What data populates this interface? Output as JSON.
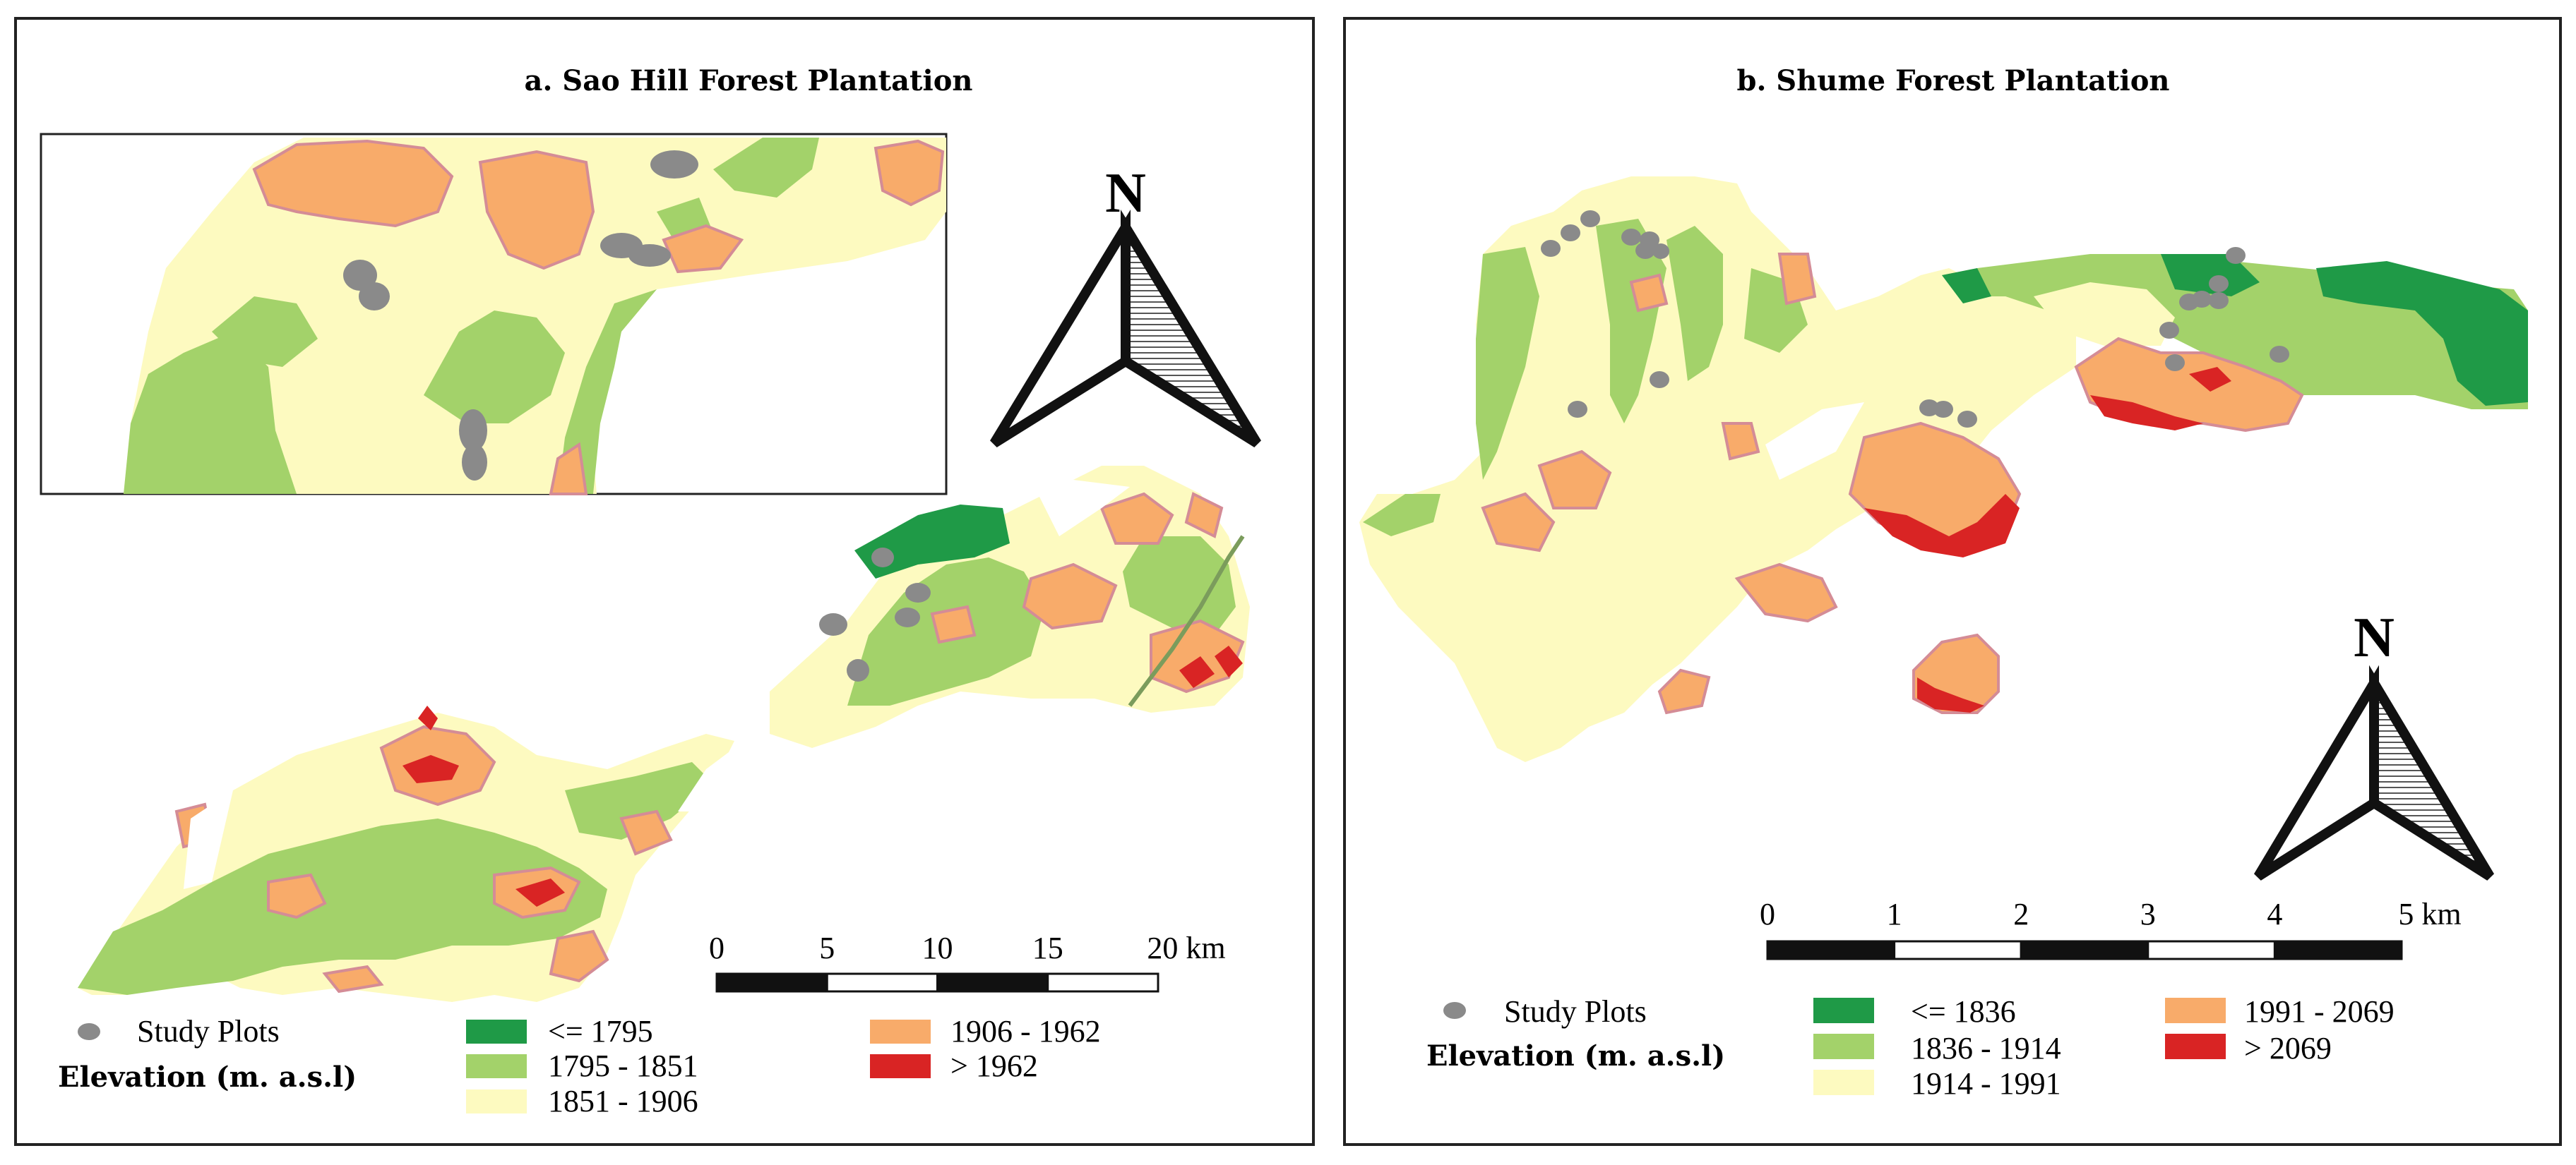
{
  "colors": {
    "c1": "#1f9a47",
    "c2": "#a3d26a",
    "c3": "#fdfac0",
    "c4": "#f8ab6a",
    "c5": "#d92424",
    "contour": "#d48c96",
    "plot": "#8a8a8a",
    "frame": "#222222"
  },
  "panel_a": {
    "title": "a. Sao Hill Forest Plantation",
    "north_label": "N",
    "scale_ticks": [
      "0",
      "5",
      "10",
      "15"
    ],
    "scale_end": "20 km",
    "legend": {
      "study_plots": "Study Plots",
      "elevation_label": "Elevation (m. a.s.l)",
      "classes": [
        "<= 1795",
        "1795 - 1851",
        "1851 - 1906",
        "1906 - 1962",
        "> 1962"
      ]
    }
  },
  "panel_b": {
    "title": "b. Shume Forest Plantation",
    "north_label": "N",
    "scale_ticks": [
      "0",
      "1",
      "2",
      "3",
      "4"
    ],
    "scale_end": "5 km",
    "legend": {
      "study_plots": "Study Plots",
      "elevation_label": "Elevation (m. a.s.l)",
      "classes": [
        "<= 1836",
        "1836 - 1914",
        "1914 - 1991",
        "1991 - 2069",
        "> 2069"
      ]
    }
  }
}
